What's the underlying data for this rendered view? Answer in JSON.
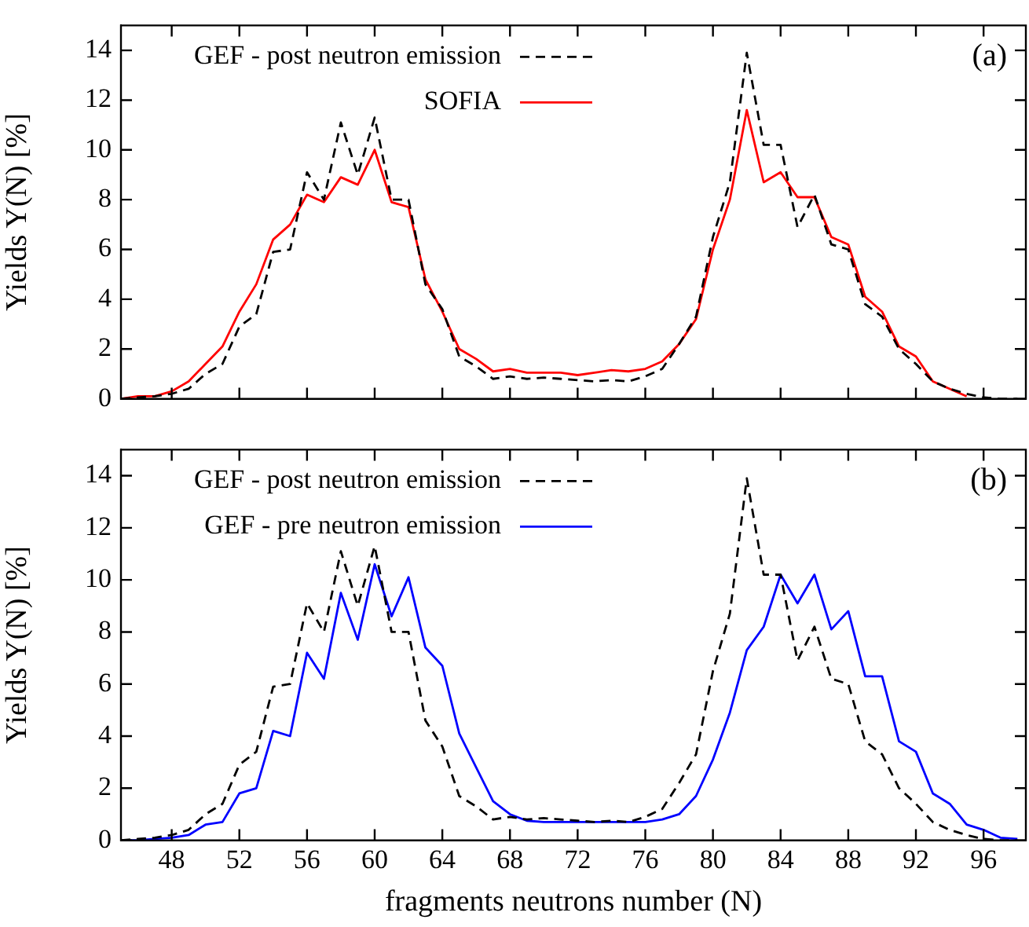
{
  "chart_data": [
    {
      "type": "line",
      "x": [
        45,
        46,
        47,
        48,
        49,
        50,
        51,
        52,
        53,
        54,
        55,
        56,
        57,
        58,
        59,
        60,
        61,
        62,
        63,
        64,
        65,
        66,
        67,
        68,
        69,
        70,
        71,
        72,
        73,
        74,
        75,
        76,
        77,
        78,
        79,
        80,
        81,
        82,
        83,
        84,
        85,
        86,
        87,
        88,
        89,
        90,
        91,
        92,
        93,
        94,
        95,
        96,
        97,
        98
      ],
      "series": [
        {
          "name": "GEF - post neutron emission",
          "color": "#000000",
          "line_style": "dashed",
          "values": [
            0.0,
            0.05,
            0.1,
            0.2,
            0.4,
            1.0,
            1.4,
            2.9,
            3.4,
            5.9,
            6.0,
            9.1,
            8.0,
            11.1,
            9.0,
            11.3,
            8.0,
            8.0,
            4.6,
            3.6,
            1.7,
            1.3,
            0.8,
            0.9,
            0.8,
            0.85,
            0.8,
            0.75,
            0.7,
            0.75,
            0.7,
            0.9,
            1.2,
            2.2,
            3.3,
            6.5,
            8.7,
            13.9,
            10.2,
            10.2,
            6.9,
            8.2,
            6.2,
            6.0,
            3.8,
            3.3,
            2.0,
            1.4,
            0.7,
            0.4,
            0.2,
            0.05,
            0.0,
            0.0
          ]
        },
        {
          "name": "SOFIA",
          "color": "#ff0000",
          "line_style": "solid",
          "values": [
            0.0,
            0.1,
            0.1,
            0.3,
            0.7,
            1.4,
            2.1,
            3.5,
            4.6,
            6.4,
            7.0,
            8.2,
            7.9,
            8.9,
            8.6,
            10.0,
            7.9,
            7.7,
            4.8,
            3.5,
            2.0,
            1.6,
            1.1,
            1.2,
            1.05,
            1.05,
            1.05,
            0.95,
            1.05,
            1.15,
            1.1,
            1.2,
            1.5,
            2.2,
            3.2,
            6.0,
            8.0,
            11.6,
            8.7,
            9.1,
            8.1,
            8.1,
            6.5,
            6.2,
            4.1,
            3.5,
            2.1,
            1.7,
            0.7,
            0.4,
            0.1,
            null,
            null,
            null
          ]
        }
      ],
      "xlim": [
        45,
        98.5
      ],
      "xticks": [
        48,
        52,
        56,
        60,
        64,
        68,
        72,
        76,
        80,
        84,
        88,
        92,
        96
      ],
      "ylim": [
        0,
        15
      ],
      "yticks": [
        0,
        2,
        4,
        6,
        8,
        10,
        12,
        14
      ],
      "ylabel": "Yields Y(N) [%]",
      "annotations": [
        "(a)"
      ],
      "legend": "top left",
      "tick_labels": "y",
      "marker": "none"
    },
    {
      "type": "line",
      "x": [
        45,
        46,
        47,
        48,
        49,
        50,
        51,
        52,
        53,
        54,
        55,
        56,
        57,
        58,
        59,
        60,
        61,
        62,
        63,
        64,
        65,
        66,
        67,
        68,
        69,
        70,
        71,
        72,
        73,
        74,
        75,
        76,
        77,
        78,
        79,
        80,
        81,
        82,
        83,
        84,
        85,
        86,
        87,
        88,
        89,
        90,
        91,
        92,
        93,
        94,
        95,
        96,
        97,
        98
      ],
      "series": [
        {
          "name": "GEF - post neutron emission",
          "color": "#000000",
          "line_style": "dashed",
          "values": [
            0.0,
            0.05,
            0.1,
            0.2,
            0.4,
            1.0,
            1.4,
            2.9,
            3.4,
            5.9,
            6.0,
            9.1,
            8.0,
            11.1,
            9.0,
            11.3,
            8.0,
            8.0,
            4.6,
            3.6,
            1.7,
            1.3,
            0.8,
            0.9,
            0.8,
            0.85,
            0.8,
            0.75,
            0.7,
            0.75,
            0.7,
            0.9,
            1.2,
            2.2,
            3.3,
            6.5,
            8.7,
            13.9,
            10.2,
            10.2,
            6.9,
            8.2,
            6.2,
            6.0,
            3.8,
            3.3,
            2.0,
            1.4,
            0.7,
            0.4,
            0.2,
            0.05,
            0.0,
            0.0
          ]
        },
        {
          "name": "GEF - pre neutron emission",
          "color": "#0000ff",
          "line_style": "solid",
          "values": [
            0.0,
            0.0,
            0.05,
            0.1,
            0.2,
            0.6,
            0.7,
            1.8,
            2.0,
            4.2,
            4.0,
            7.2,
            6.2,
            9.5,
            7.7,
            10.6,
            8.6,
            10.1,
            7.4,
            6.7,
            4.1,
            2.8,
            1.5,
            1.0,
            0.75,
            0.7,
            0.7,
            0.7,
            0.7,
            0.7,
            0.7,
            0.7,
            0.8,
            1.0,
            1.7,
            3.1,
            4.9,
            7.3,
            8.2,
            10.2,
            9.1,
            10.2,
            8.1,
            8.8,
            6.3,
            6.3,
            3.8,
            3.4,
            1.8,
            1.4,
            0.6,
            0.4,
            0.1,
            0.05
          ]
        }
      ],
      "xlim": [
        45,
        98.5
      ],
      "xticks": [
        48,
        52,
        56,
        60,
        64,
        68,
        72,
        76,
        80,
        84,
        88,
        92,
        96
      ],
      "ylim": [
        0,
        15
      ],
      "yticks": [
        0,
        2,
        4,
        6,
        8,
        10,
        12,
        14
      ],
      "xlabel": "fragments neutrons number (N)",
      "ylabel": "Yields Y(N) [%]",
      "annotations": [
        "(b)"
      ],
      "legend": "top left",
      "marker": "none"
    }
  ]
}
